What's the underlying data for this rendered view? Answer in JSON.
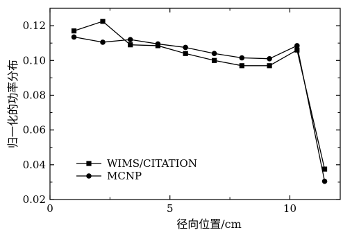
{
  "chart_data": {
    "type": "line",
    "xlabel": "径向位置/cm",
    "ylabel": "归一化的功率分布",
    "xlim": [
      0,
      12.1
    ],
    "ylim": [
      0.02,
      0.13
    ],
    "x_ticks": [
      0,
      5,
      10
    ],
    "y_ticks": [
      0.02,
      0.04,
      0.06,
      0.08,
      0.1,
      0.12
    ],
    "x_tick_labels": [
      "0",
      "5",
      "10"
    ],
    "y_tick_labels": [
      "0.02",
      "0.04",
      "0.06",
      "0.08",
      "0.10",
      "0.12"
    ],
    "x": [
      1.0,
      2.2,
      3.35,
      4.5,
      5.65,
      6.85,
      8.0,
      9.15,
      10.3,
      11.45
    ],
    "grid": false,
    "legend_position": "bottom-left",
    "series": [
      {
        "name": "WIMS/CITATION",
        "marker": "square",
        "color": "#000000",
        "values": [
          0.117,
          0.1225,
          0.109,
          0.1085,
          0.104,
          0.1,
          0.097,
          0.097,
          0.106,
          0.0375
        ]
      },
      {
        "name": "MCNP",
        "marker": "circle",
        "color": "#000000",
        "values": [
          0.1135,
          0.1105,
          0.112,
          0.1095,
          0.1075,
          0.104,
          0.1015,
          0.101,
          0.1085,
          0.0305
        ]
      }
    ]
  }
}
